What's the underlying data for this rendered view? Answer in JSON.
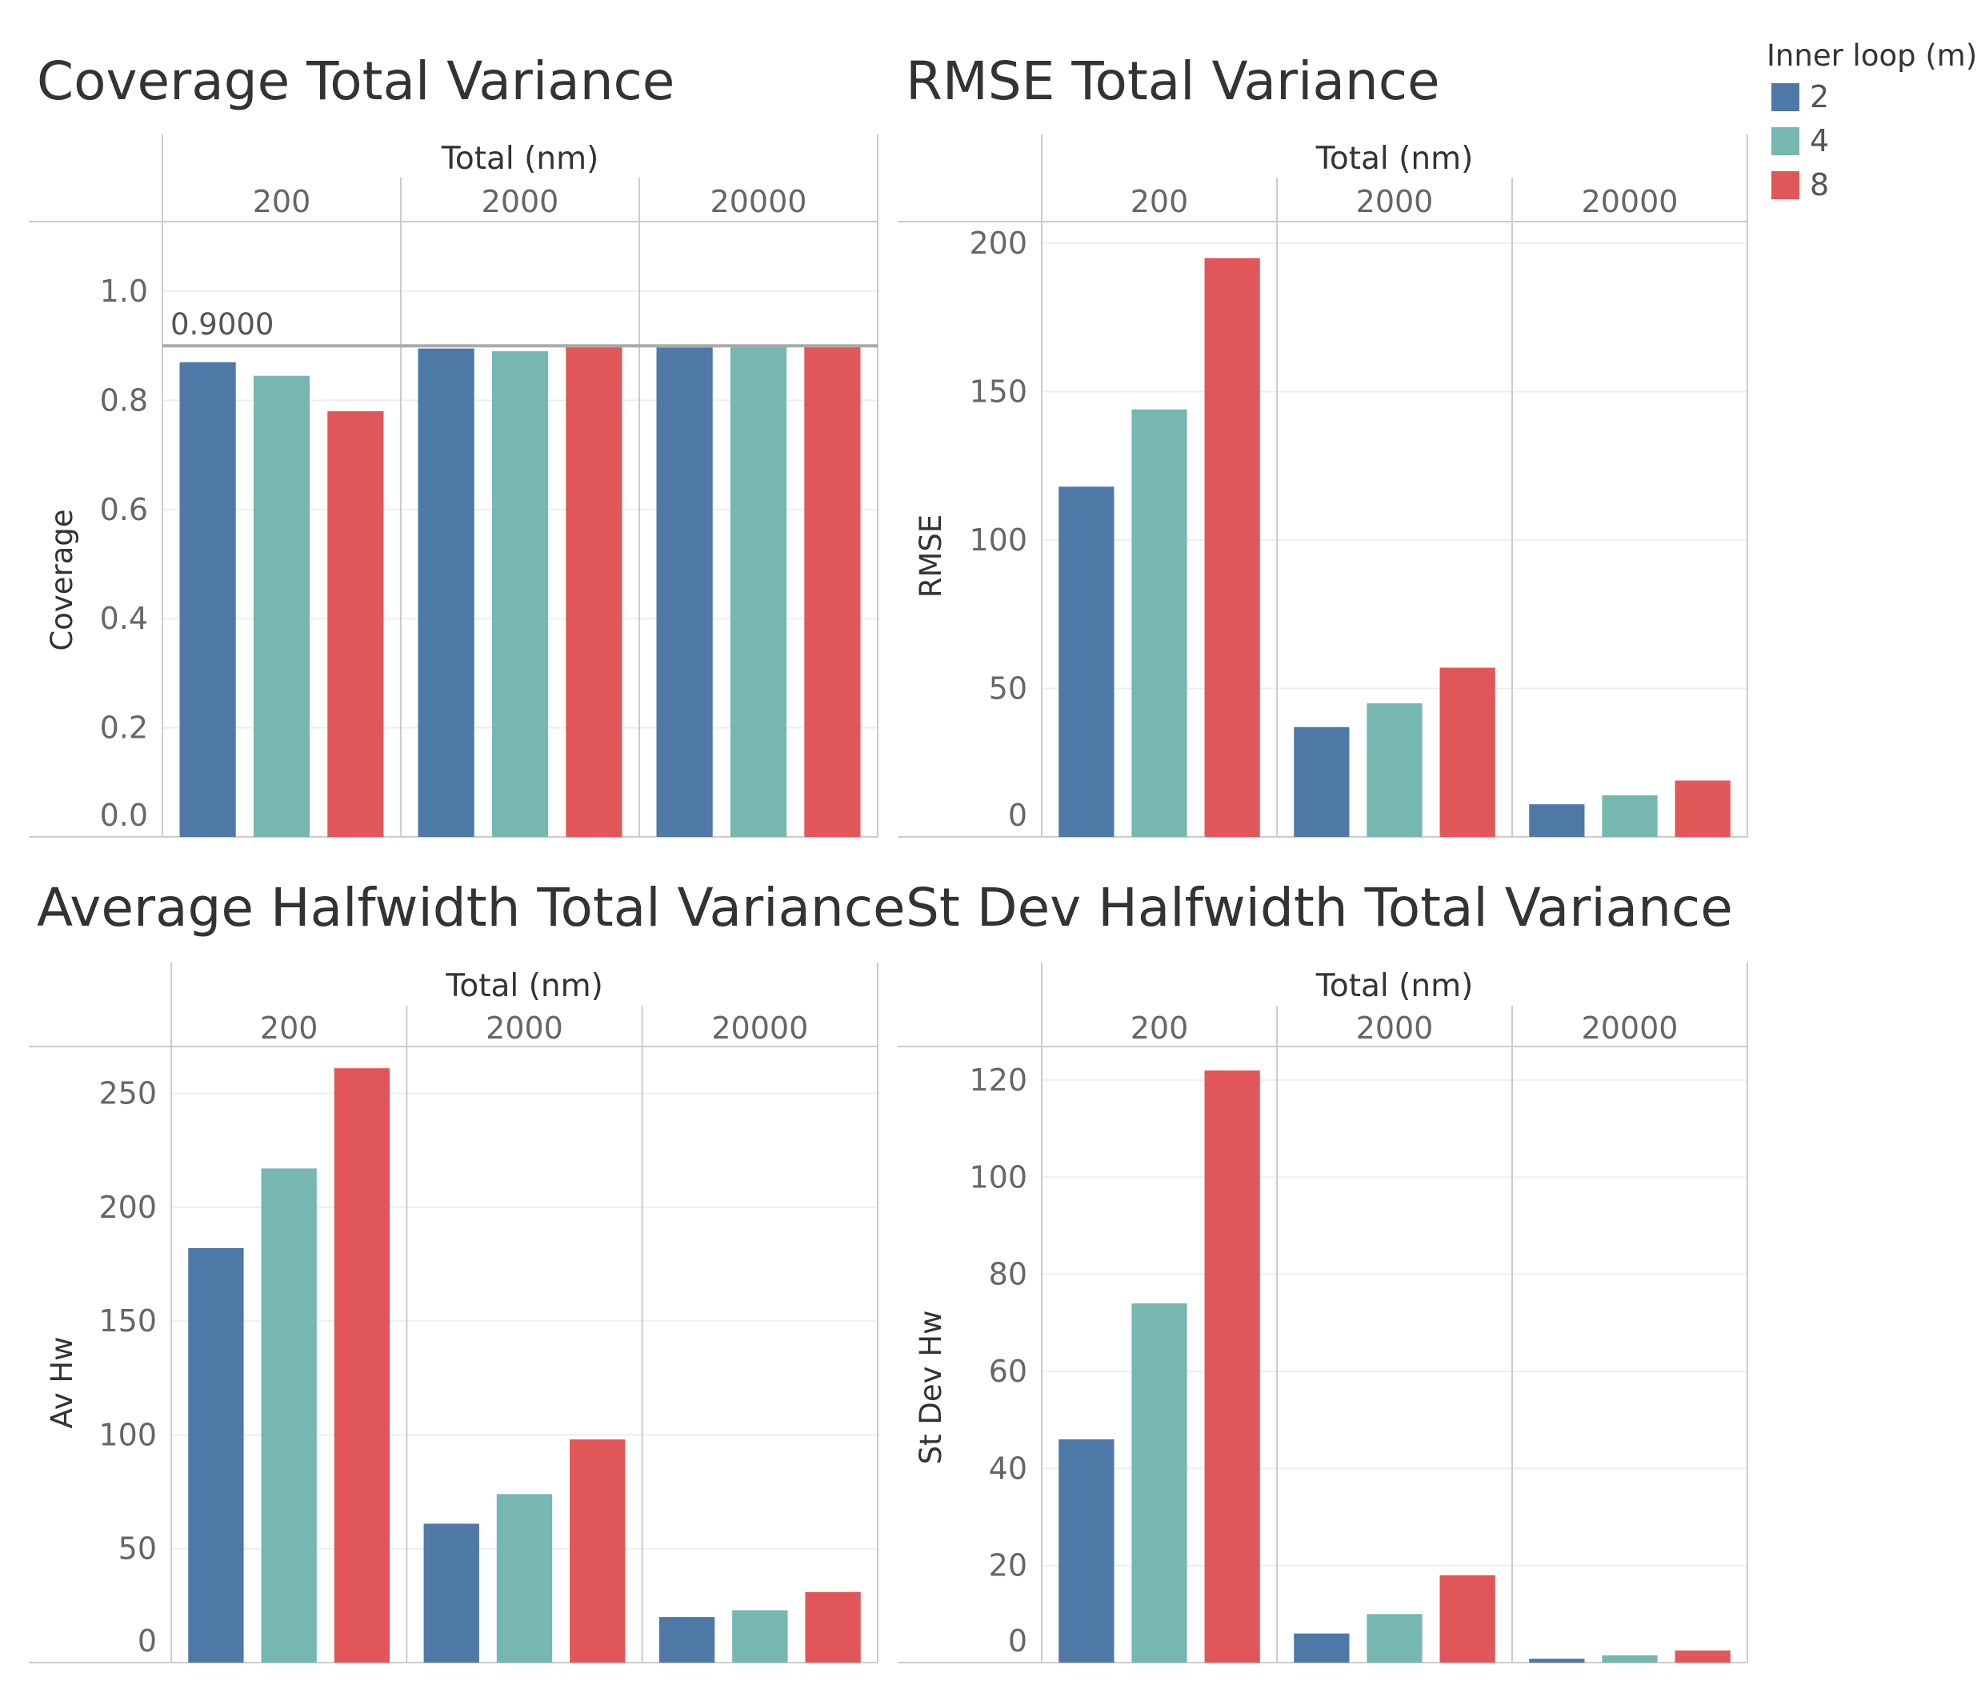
{
  "legend": {
    "title": "Inner loop (m)",
    "items": [
      {
        "label": "2",
        "color": "#4e79a7"
      },
      {
        "label": "4",
        "color": "#76b7b2"
      },
      {
        "label": "8",
        "color": "#e15759"
      }
    ]
  },
  "chart_data": [
    {
      "type": "bar",
      "title": "Coverage Total Variance",
      "group_title": "Total (nm)",
      "categories": [
        "200",
        "2000",
        "20000"
      ],
      "ylabel": "Coverage",
      "ylim": [
        0,
        1.0
      ],
      "yticks": [
        "0.0",
        "0.2",
        "0.4",
        "0.6",
        "0.8",
        "1.0"
      ],
      "reference_line": {
        "value": 0.9,
        "label": "0.9000"
      },
      "series": [
        {
          "name": "2",
          "values": [
            0.87,
            0.895,
            0.897
          ]
        },
        {
          "name": "4",
          "values": [
            0.845,
            0.89,
            0.9
          ]
        },
        {
          "name": "8",
          "values": [
            0.78,
            0.9,
            0.902
          ]
        }
      ]
    },
    {
      "type": "bar",
      "title": "RMSE Total Variance",
      "group_title": "Total (nm)",
      "categories": [
        "200",
        "2000",
        "20000"
      ],
      "ylabel": "RMSE",
      "ylim": [
        0,
        200
      ],
      "yticks": [
        "0",
        "50",
        "100",
        "150",
        "200"
      ],
      "series": [
        {
          "name": "2",
          "values": [
            118,
            37,
            11
          ]
        },
        {
          "name": "4",
          "values": [
            144,
            45,
            14
          ]
        },
        {
          "name": "8",
          "values": [
            195,
            57,
            19
          ]
        }
      ]
    },
    {
      "type": "bar",
      "title": "Average Halfwidth Total Variance",
      "group_title": "Total (nm)",
      "categories": [
        "200",
        "2000",
        "20000"
      ],
      "ylabel": "Av Hw",
      "ylim": [
        0,
        260
      ],
      "yticks": [
        "0",
        "50",
        "100",
        "150",
        "200",
        "250"
      ],
      "series": [
        {
          "name": "2",
          "values": [
            182,
            61,
            20
          ]
        },
        {
          "name": "4",
          "values": [
            217,
            74,
            23
          ]
        },
        {
          "name": "8",
          "values": [
            261,
            98,
            31
          ]
        }
      ]
    },
    {
      "type": "bar",
      "title": "St Dev Halfwidth Total Variance",
      "group_title": "Total (nm)",
      "categories": [
        "200",
        "2000",
        "20000"
      ],
      "ylabel": "St Dev Hw",
      "ylim": [
        0,
        120
      ],
      "yticks": [
        "0",
        "20",
        "40",
        "60",
        "80",
        "100",
        "120"
      ],
      "series": [
        {
          "name": "2",
          "values": [
            46,
            6,
            0.8
          ]
        },
        {
          "name": "4",
          "values": [
            74,
            10,
            1.5
          ]
        },
        {
          "name": "8",
          "values": [
            122,
            18,
            2.5
          ]
        }
      ]
    }
  ]
}
